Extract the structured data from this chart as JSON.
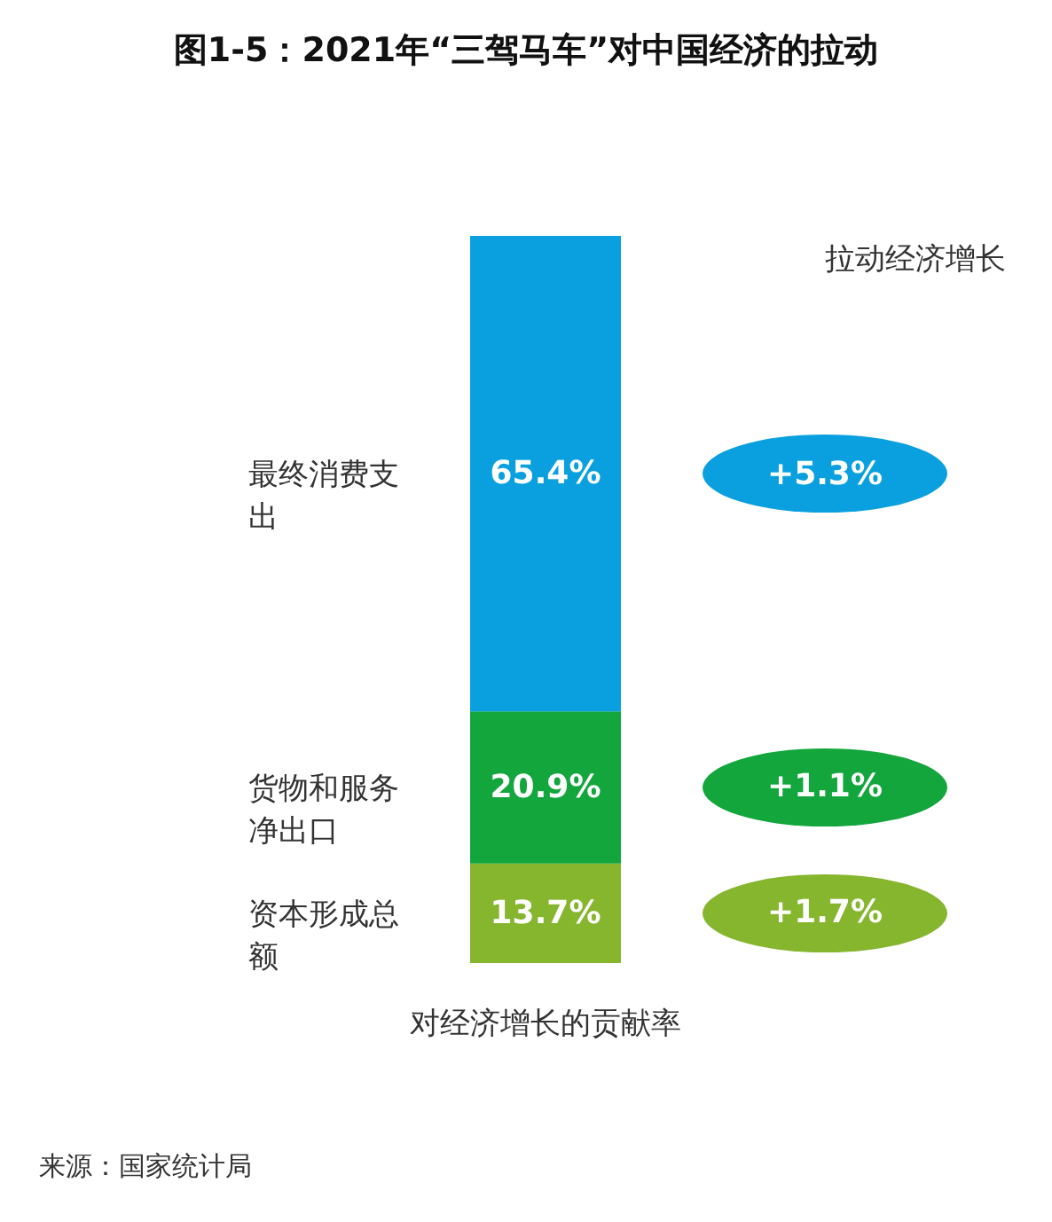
{
  "chart_data": {
    "type": "bar",
    "stacked": true,
    "title": "图1-5：2021年“三驾马车”对中国经济的拉动",
    "xlabel": "对经济增长的贡献率",
    "categories": [
      null
    ],
    "series": [
      {
        "name": "资本形成总额",
        "color": "#86b52e",
        "values": [
          13.7
        ],
        "value_labels": [
          "13.7%"
        ]
      },
      {
        "name": "货物和服务净出口",
        "color": "#12a63c",
        "values": [
          20.9
        ],
        "value_labels": [
          "20.9%"
        ]
      },
      {
        "name": "最终消费支出",
        "color": "#0aa0e0",
        "values": [
          65.4
        ],
        "value_labels": [
          "65.4%"
        ]
      }
    ],
    "annotations": [
      "拉动经济增长",
      "+1.7%",
      "+1.1%",
      "+5.3%",
      "来源：国家统计局"
    ]
  }
}
